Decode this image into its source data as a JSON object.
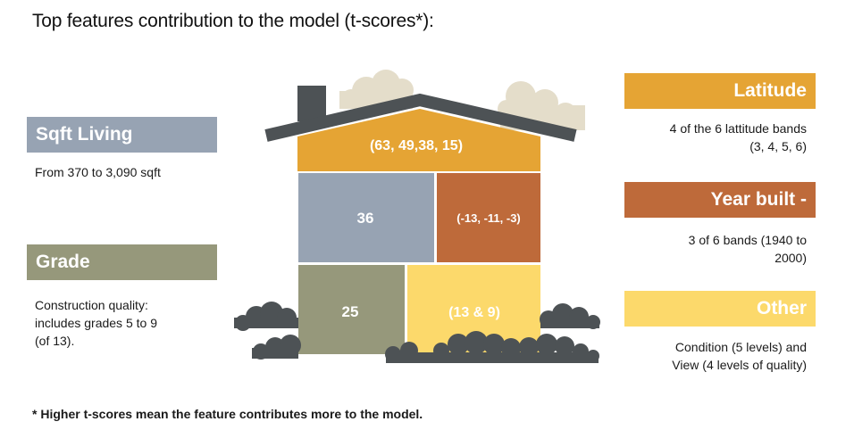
{
  "title": "Top features contribution to the model (t-scores*):",
  "footnote": "* Higher t-scores mean the feature contributes more to the model.",
  "colors": {
    "latitude": "#E5A434",
    "sqft_living": "#97A3B3",
    "year_built": "#BE6A3A",
    "grade": "#96987B",
    "other": "#FCD96B",
    "roof": "#4D5255",
    "cloud": "#E4DDCA",
    "bush": "#4D5255"
  },
  "features": {
    "sqft_living": {
      "label": "Sqft Living",
      "description": "From 370 to 3,090 sqft",
      "t_score_text": "36"
    },
    "grade": {
      "label": "Grade",
      "description_lines": [
        "Construction quality:",
        "includes grades 5 to 9",
        "(of 13)."
      ],
      "t_score_text": "25"
    },
    "latitude": {
      "label": "Latitude",
      "description_lines": [
        "4 of the 6 lattitude bands",
        "(3, 4, 5, 6)"
      ],
      "t_score_text": "(63, 49,38, 15)"
    },
    "year_built": {
      "label": "Year built -",
      "description_lines": [
        "3 of 6 bands (1940 to",
        "2000)"
      ],
      "t_score_text": "(-13, -11, -3)"
    },
    "other": {
      "label": "Other",
      "description_lines": [
        "Condition (5 levels) and",
        "View (4 levels of quality)"
      ],
      "t_score_text": "(13 & 9)"
    }
  }
}
